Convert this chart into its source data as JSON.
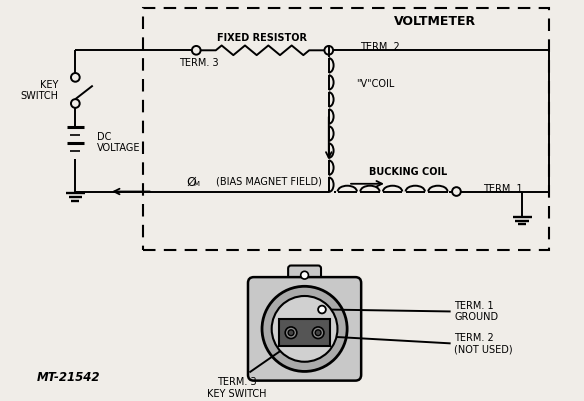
{
  "title": "VOLTMETER",
  "bg_color": "#f0ede8",
  "line_color": "#000000",
  "text_color": "#000000",
  "label_MT": "MT-21542",
  "labels": {
    "voltmeter": "VOLTMETER",
    "fixed_resistor": "FIXED RESISTOR",
    "term3_top": "TERM. 3",
    "term2_top": "TERM. 2",
    "v_coil": "\"V\"COIL",
    "bucking_coil": "BUCKING COIL",
    "term1": "TERM. 1",
    "bias_field": "(BIAS MAGNET FIELD)",
    "phi_m": "Ø",
    "phi_sub": "M",
    "key_switch": "KEY\nSWITCH",
    "dc_voltage": "DC\nVOLTAGE",
    "term1_ground": "TERM. 1\nGROUND",
    "term2_notused": "TERM. 2\n(NOT USED)",
    "term3_keyswitch": "TERM. 3\nKEY SWITCH"
  },
  "figsize": [
    5.84,
    4.01
  ],
  "dpi": 100
}
